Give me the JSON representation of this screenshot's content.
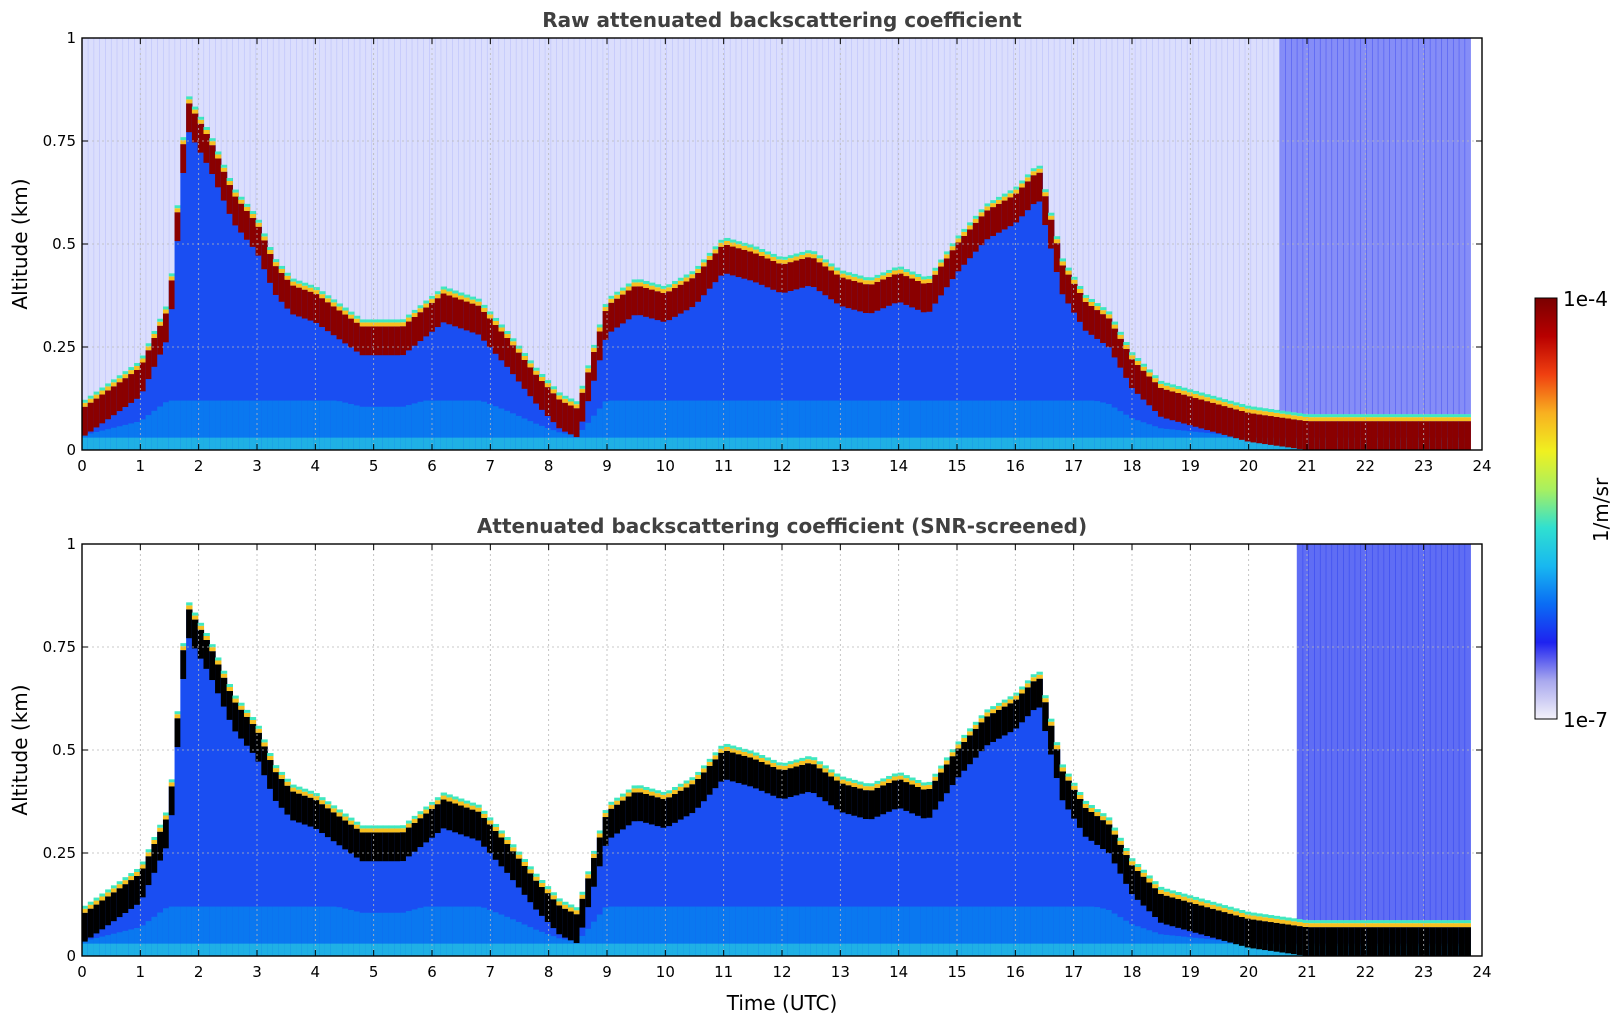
{
  "chart_data": [
    {
      "type": "heatmap",
      "title": "Raw attenuated backscattering coefficient",
      "xlabel": "",
      "ylabel": "Altitude (km)",
      "xlim": [
        0,
        24
      ],
      "ylim": [
        0,
        1
      ],
      "xticks": [
        "0",
        "1",
        "2",
        "3",
        "4",
        "5",
        "6",
        "7",
        "8",
        "9",
        "10",
        "11",
        "12",
        "13",
        "14",
        "15",
        "16",
        "17",
        "18",
        "19",
        "20",
        "21",
        "22",
        "23",
        "24"
      ],
      "yticks": [
        "0",
        "0.25",
        "0.5",
        "0.75",
        "1"
      ],
      "yticks_values": [
        0,
        0.25,
        0.5,
        0.75,
        1
      ],
      "grid": true,
      "colormap": "jet",
      "series": [
        {
          "feature": "boundary-layer top (peak backscatter altitude, km)",
          "x": [
            0,
            0.5,
            1,
            1.5,
            1.8,
            2.2,
            2.6,
            3,
            3.3,
            3.6,
            4,
            4.8,
            5.5,
            6.2,
            6.8,
            7.3,
            7.8,
            8.2,
            8.5,
            9,
            9.5,
            10,
            10.5,
            11,
            11.5,
            12,
            12.5,
            13,
            13.5,
            14,
            14.5,
            15,
            15.5,
            16,
            16.4,
            16.8,
            17.2,
            17.6,
            18,
            18.5,
            19,
            19.5,
            20,
            20.5,
            21,
            22,
            23,
            23.8
          ],
          "y": [
            0.1,
            0.15,
            0.2,
            0.35,
            0.85,
            0.75,
            0.62,
            0.55,
            0.45,
            0.4,
            0.38,
            0.3,
            0.3,
            0.38,
            0.35,
            0.27,
            0.18,
            0.12,
            0.1,
            0.35,
            0.4,
            0.38,
            0.42,
            0.5,
            0.48,
            0.45,
            0.47,
            0.42,
            0.4,
            0.43,
            0.4,
            0.5,
            0.58,
            0.62,
            0.68,
            0.45,
            0.36,
            0.32,
            0.22,
            0.15,
            0.13,
            0.11,
            0.09,
            0.08,
            0.07,
            0.07,
            0.07,
            0.07
          ]
        }
      ]
    },
    {
      "type": "heatmap",
      "title": "Attenuated backscattering coefficient (SNR-screened)",
      "xlabel": "Time (UTC)",
      "ylabel": "Altitude (km)",
      "xlim": [
        0,
        24
      ],
      "ylim": [
        0,
        1
      ],
      "xticks": [
        "0",
        "1",
        "2",
        "3",
        "4",
        "5",
        "6",
        "7",
        "8",
        "9",
        "10",
        "11",
        "12",
        "13",
        "14",
        "15",
        "16",
        "17",
        "18",
        "19",
        "20",
        "21",
        "22",
        "23",
        "24"
      ],
      "yticks": [
        "0",
        "0.25",
        "0.5",
        "0.75",
        "1"
      ],
      "yticks_values": [
        0,
        0.25,
        0.5,
        0.75,
        1
      ],
      "grid": true,
      "colormap": "jet",
      "series": [
        {
          "feature": "boundary-layer top (peak backscatter altitude, km)",
          "x": [
            0,
            0.5,
            1,
            1.5,
            1.8,
            2.2,
            2.6,
            3,
            3.3,
            3.6,
            4,
            4.8,
            5.5,
            6.2,
            6.8,
            7.3,
            7.8,
            8.2,
            8.5,
            9,
            9.5,
            10,
            10.5,
            11,
            11.5,
            12,
            12.5,
            13,
            13.5,
            14,
            14.5,
            15,
            15.5,
            16,
            16.4,
            16.8,
            17.2,
            17.6,
            18,
            18.5,
            19,
            19.5,
            20,
            20.5,
            21,
            22,
            23,
            23.8
          ],
          "y": [
            0.1,
            0.15,
            0.2,
            0.35,
            0.85,
            0.75,
            0.62,
            0.55,
            0.45,
            0.4,
            0.38,
            0.3,
            0.3,
            0.38,
            0.35,
            0.27,
            0.18,
            0.12,
            0.1,
            0.35,
            0.4,
            0.38,
            0.42,
            0.5,
            0.48,
            0.45,
            0.47,
            0.42,
            0.4,
            0.43,
            0.4,
            0.5,
            0.58,
            0.62,
            0.68,
            0.45,
            0.36,
            0.32,
            0.22,
            0.15,
            0.13,
            0.11,
            0.09,
            0.08,
            0.07,
            0.07,
            0.07,
            0.07
          ]
        }
      ]
    }
  ],
  "colorbar": {
    "label": "1/m/sr",
    "max_label": "1e-4",
    "min_label": "1e-7",
    "range": [
      1e-07,
      0.0001
    ],
    "stops": [
      "#f4f2fa",
      "#a8a8ee",
      "#1e22f0",
      "#0a6cf4",
      "#18b8f0",
      "#30e0d0",
      "#a8f060",
      "#f0f020",
      "#f8b020",
      "#f04010",
      "#b80000",
      "#7a0000"
    ]
  }
}
